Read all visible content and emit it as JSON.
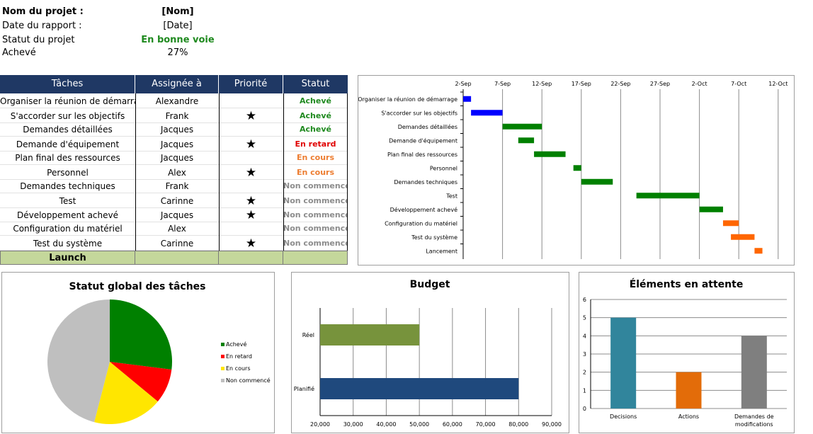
{
  "header": {
    "project_name_label": "Nom du projet :",
    "project_name_value": "[Nom]",
    "report_date_label": "Date du rapport :",
    "report_date_value": "[Date]",
    "status_label": "Statut du projet",
    "status_value": "En bonne voie",
    "done_label": "Achevé",
    "done_value": "27%"
  },
  "table": {
    "columns": [
      "Tâches",
      "Assignée à",
      "Priorité",
      "Statut"
    ],
    "rows": [
      {
        "task": "Organiser la réunion de démarrage",
        "assignee": "Alexandre",
        "priority": false,
        "status": "Achevé",
        "kind": "done"
      },
      {
        "task": "S'accorder sur les objectifs",
        "assignee": "Frank",
        "priority": true,
        "status": "Achevé",
        "kind": "done"
      },
      {
        "task": "Demandes détaillées",
        "assignee": "Jacques",
        "priority": false,
        "status": "Achevé",
        "kind": "done"
      },
      {
        "task": "Demande d'équipement",
        "assignee": "Jacques",
        "priority": true,
        "status": "En retard",
        "kind": "late"
      },
      {
        "task": "Plan final des ressources",
        "assignee": "Jacques",
        "priority": false,
        "status": "En cours",
        "kind": "prog"
      },
      {
        "task": "Personnel",
        "assignee": "Alex",
        "priority": true,
        "status": "En cours",
        "kind": "prog"
      },
      {
        "task": "Demandes techniques",
        "assignee": "Frank",
        "priority": false,
        "status": "Non commencé",
        "kind": "none"
      },
      {
        "task": "Test",
        "assignee": "Carinne",
        "priority": true,
        "status": "Non commencé",
        "kind": "none"
      },
      {
        "task": "Développement achevé",
        "assignee": "Jacques",
        "priority": true,
        "status": "Non commencé",
        "kind": "none"
      },
      {
        "task": "Configuration du matériel",
        "assignee": "Alex",
        "priority": false,
        "status": "Non commencé",
        "kind": "none"
      },
      {
        "task": "Test du système",
        "assignee": "Carinne",
        "priority": true,
        "status": "Non commencé",
        "kind": "none"
      }
    ],
    "launch_label": "Launch"
  },
  "colors": {
    "header_navy": "#1f3864",
    "done_green": "#1f8a1f",
    "late_red": "#e00000",
    "progress_orange": "#ed7d31",
    "none_gray": "#8c8c8c",
    "launch_green": "#c4d79b"
  },
  "chart_data": [
    {
      "type": "bar",
      "subtype": "gantt",
      "title": "",
      "x_ticks": [
        "2-Sep",
        "7-Sep",
        "12-Sep",
        "17-Sep",
        "22-Sep",
        "27-Sep",
        "2-Oct",
        "7-Oct",
        "12-Oct"
      ],
      "x_axis_start": "2-Sep",
      "tasks": [
        {
          "name": "Organiser la réunion de démarrage",
          "start": "2-Sep",
          "end": "3-Sep",
          "color": "#0000ff"
        },
        {
          "name": "S'accorder sur les objectifs",
          "start": "3-Sep",
          "end": "7-Sep",
          "color": "#0000ff"
        },
        {
          "name": "Demandes détaillées",
          "start": "7-Sep",
          "end": "12-Sep",
          "color": "#008000"
        },
        {
          "name": "Demande d'équipement",
          "start": "9-Sep",
          "end": "11-Sep",
          "color": "#008000"
        },
        {
          "name": "Plan final des ressources",
          "start": "11-Sep",
          "end": "15-Sep",
          "color": "#008000"
        },
        {
          "name": "Personnel",
          "start": "16-Sep",
          "end": "17-Sep",
          "color": "#008000"
        },
        {
          "name": "Demandes techniques",
          "start": "17-Sep",
          "end": "21-Sep",
          "color": "#008000"
        },
        {
          "name": "Test",
          "start": "24-Sep",
          "end": "2-Oct",
          "color": "#008000"
        },
        {
          "name": "Développement achevé",
          "start": "2-Oct",
          "end": "5-Oct",
          "color": "#008000"
        },
        {
          "name": "Configuration du matériel",
          "start": "5-Oct",
          "end": "7-Oct",
          "color": "#ff6600"
        },
        {
          "name": "Test du système",
          "start": "6-Oct",
          "end": "9-Oct",
          "color": "#ff6600"
        },
        {
          "name": "Lancement",
          "start": "9-Oct",
          "end": "10-Oct",
          "color": "#ff6600"
        }
      ],
      "grid": true
    },
    {
      "type": "pie",
      "title": "Statut global des tâches",
      "slices": [
        {
          "label": "Achevé",
          "value": 27,
          "color": "#008000"
        },
        {
          "label": "En retard",
          "value": 9,
          "color": "#ff0000"
        },
        {
          "label": "En cours",
          "value": 18,
          "color": "#ffe600"
        },
        {
          "label": "Non commencé",
          "value": 46,
          "color": "#bfbfbf"
        }
      ],
      "legend": "right"
    },
    {
      "type": "bar",
      "orientation": "horizontal",
      "title": "Budget",
      "categories": [
        "Réel",
        "Planifié"
      ],
      "values": [
        50000,
        80000
      ],
      "colors": [
        "#77933c",
        "#1f497d"
      ],
      "xlim": [
        20000,
        90000
      ],
      "x_ticks": [
        "20,000",
        "30,000",
        "40,000",
        "50,000",
        "60,000",
        "70,000",
        "80,000",
        "90,000"
      ],
      "grid": true
    },
    {
      "type": "bar",
      "title": "Éléments en attente",
      "categories": [
        "Decisions",
        "Actions",
        "Demandes de modifications"
      ],
      "values": [
        5,
        2,
        4
      ],
      "colors": [
        "#31859c",
        "#e36c09",
        "#7f7f7f"
      ],
      "ylim": [
        0,
        6
      ],
      "y_ticks": [
        "0",
        "1",
        "2",
        "3",
        "4",
        "5",
        "6"
      ],
      "grid": true
    }
  ]
}
